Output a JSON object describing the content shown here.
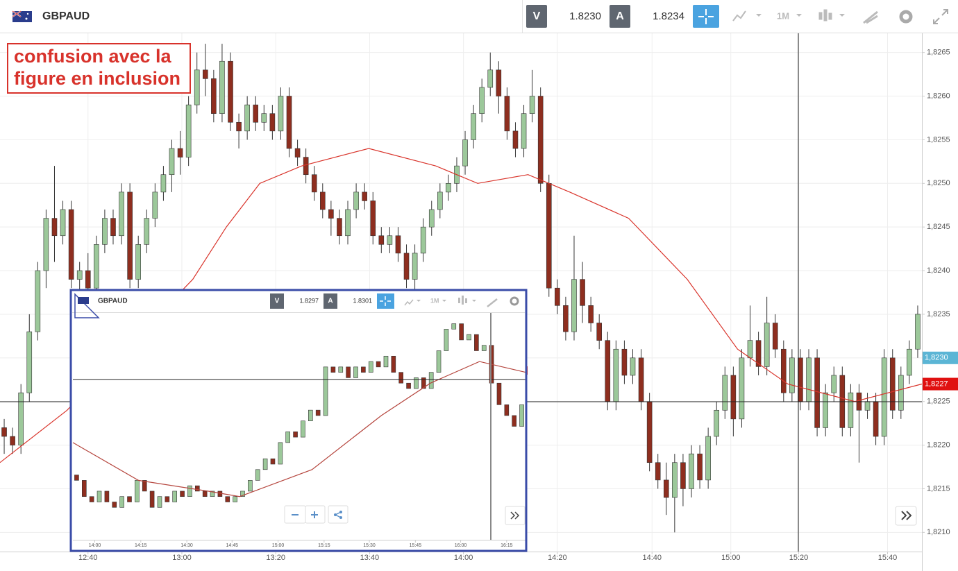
{
  "header": {
    "symbol": "GBPAUD",
    "bid_label": "V",
    "bid": "1.8230",
    "ask_label": "A",
    "ask": "1.8234",
    "timeframe": "1M"
  },
  "inset_header": {
    "symbol": "GBPAUD",
    "bid_label": "V",
    "bid": "1.8297",
    "ask_label": "A",
    "ask": "1.8301",
    "timeframe": "1M"
  },
  "annotation": [
    "confusion avec la",
    "figure en inclusion"
  ],
  "chart_data": [
    {
      "type": "candlestick",
      "up_color": "#9cc89a",
      "down_color": "#8e2e1f",
      "grid": true,
      "xlim": [
        0,
        110
      ],
      "ylim": [
        1.82078,
        1.82672
      ],
      "xticks": [
        {
          "value": 10.5,
          "label": "12:40"
        },
        {
          "value": 21.7,
          "label": "13:00"
        },
        {
          "value": 32.9,
          "label": "13:20"
        },
        {
          "value": 44.1,
          "label": "13:40"
        },
        {
          "value": 55.3,
          "label": "14:00"
        },
        {
          "value": 66.5,
          "label": "14:20"
        },
        {
          "value": 77.8,
          "label": "14:40"
        },
        {
          "value": 87.2,
          "label": "15:00"
        },
        {
          "value": 95.3,
          "label": "15:20"
        },
        {
          "value": 105.9,
          "label": "15:40"
        }
      ],
      "yticks": [
        {
          "value": 1.821,
          "label": "1,8210"
        },
        {
          "value": 1.8215,
          "label": "1,8215"
        },
        {
          "value": 1.822,
          "label": "1,8220"
        },
        {
          "value": 1.8225,
          "label": "1,8225"
        },
        {
          "value": 1.823,
          "label": "1,8230"
        },
        {
          "value": 1.8235,
          "label": "1,8235"
        },
        {
          "value": 1.824,
          "label": "1,8240"
        },
        {
          "value": 1.8245,
          "label": "1,8245"
        },
        {
          "value": 1.825,
          "label": "1,8250"
        },
        {
          "value": 1.8255,
          "label": "1,8255"
        },
        {
          "value": 1.826,
          "label": "1,8260"
        },
        {
          "value": 1.8265,
          "label": "1,8265"
        }
      ],
      "price_markers": [
        {
          "value": 1.823,
          "label": "1,8230",
          "color": "#5bb5d5"
        },
        {
          "value": 1.8227,
          "label": "1,8227",
          "color": "#e01010"
        }
      ],
      "open": [
        1.8222,
        1.8221,
        1.822,
        1.8226,
        1.8233,
        1.824,
        1.8246,
        1.8244,
        1.8247,
        1.8239,
        1.824,
        1.8238,
        1.8243,
        1.8246,
        1.8244,
        1.8249,
        1.8239,
        1.8243,
        1.8246,
        1.8249,
        1.8251,
        1.8254,
        1.8253,
        1.8259,
        1.8263,
        1.8262,
        1.8258,
        1.8264,
        1.8257,
        1.8256,
        1.8259,
        1.8257,
        1.8258,
        1.8256,
        1.826,
        1.8254,
        1.8253,
        1.8251,
        1.8249,
        1.8247,
        1.8246,
        1.8244,
        1.8247,
        1.8249,
        1.8248,
        1.8244,
        1.8243,
        1.8244,
        1.8242,
        1.8239,
        1.8242,
        1.8245,
        1.8247,
        1.8249,
        1.825,
        1.8252,
        1.8255,
        1.8258,
        1.8261,
        1.8263,
        1.826,
        1.8256,
        1.8254,
        1.8258,
        1.826,
        1.825,
        1.8238,
        1.8236,
        1.8233,
        1.8239,
        1.8236,
        1.8234,
        1.8232,
        1.8225,
        1.8231,
        1.8228,
        1.823,
        1.8225,
        1.8218,
        1.8216,
        1.8214,
        1.8218,
        1.8215,
        1.8219,
        1.8216,
        1.8221,
        1.8224,
        1.8228,
        1.8223,
        1.823,
        1.8232,
        1.8229,
        1.8234,
        1.8231,
        1.8226,
        1.823,
        1.8225,
        1.823,
        1.8222,
        1.8226,
        1.8228,
        1.8222,
        1.8226,
        1.8224,
        1.8225,
        1.8221,
        1.823,
        1.8224,
        1.8228,
        1.8231
      ],
      "high": [
        1.8223,
        1.8222,
        1.8227,
        1.8235,
        1.8241,
        1.8247,
        1.8252,
        1.8248,
        1.8248,
        1.8241,
        1.8242,
        1.8244,
        1.8247,
        1.8247,
        1.825,
        1.825,
        1.8244,
        1.8247,
        1.825,
        1.8252,
        1.8255,
        1.8256,
        1.826,
        1.8265,
        1.8266,
        1.8263,
        1.8266,
        1.8265,
        1.8258,
        1.826,
        1.826,
        1.8259,
        1.8259,
        1.8261,
        1.8261,
        1.8255,
        1.8254,
        1.8252,
        1.825,
        1.8248,
        1.8247,
        1.8248,
        1.825,
        1.825,
        1.8249,
        1.8245,
        1.8245,
        1.8245,
        1.8243,
        1.8243,
        1.8246,
        1.8248,
        1.825,
        1.8251,
        1.8253,
        1.8256,
        1.8259,
        1.8262,
        1.8265,
        1.8264,
        1.8261,
        1.8257,
        1.8259,
        1.8263,
        1.8261,
        1.8251,
        1.8239,
        1.8237,
        1.8244,
        1.8241,
        1.8237,
        1.8235,
        1.8233,
        1.8232,
        1.8232,
        1.8231,
        1.8231,
        1.8226,
        1.8219,
        1.8218,
        1.8219,
        1.8219,
        1.822,
        1.822,
        1.8222,
        1.8225,
        1.8229,
        1.8229,
        1.8231,
        1.8236,
        1.8233,
        1.8237,
        1.8235,
        1.8232,
        1.8231,
        1.8231,
        1.8231,
        1.8231,
        1.8227,
        1.8229,
        1.8229,
        1.8227,
        1.8227,
        1.8226,
        1.8226,
        1.8231,
        1.8231,
        1.8229,
        1.8232,
        1.8236
      ],
      "low": [
        1.8219,
        1.8219,
        1.8219,
        1.8225,
        1.8232,
        1.8238,
        1.8241,
        1.8243,
        1.8238,
        1.8237,
        1.8237,
        1.8237,
        1.8242,
        1.8243,
        1.8243,
        1.8238,
        1.8238,
        1.8242,
        1.8245,
        1.8248,
        1.8249,
        1.8251,
        1.8252,
        1.8258,
        1.826,
        1.8257,
        1.8257,
        1.8256,
        1.8254,
        1.8255,
        1.8256,
        1.8256,
        1.8255,
        1.8255,
        1.8253,
        1.8252,
        1.825,
        1.8248,
        1.8246,
        1.8244,
        1.8243,
        1.8243,
        1.8246,
        1.8247,
        1.8243,
        1.8242,
        1.8242,
        1.8241,
        1.8238,
        1.8237,
        1.8241,
        1.8244,
        1.8246,
        1.8248,
        1.8249,
        1.8251,
        1.8254,
        1.8257,
        1.826,
        1.8258,
        1.8255,
        1.8253,
        1.8253,
        1.8257,
        1.8249,
        1.8237,
        1.8235,
        1.8232,
        1.8232,
        1.8234,
        1.8233,
        1.8231,
        1.8224,
        1.8224,
        1.8227,
        1.8227,
        1.8224,
        1.8217,
        1.8215,
        1.8212,
        1.821,
        1.8213,
        1.8214,
        1.8215,
        1.8215,
        1.822,
        1.8223,
        1.8221,
        1.8222,
        1.8229,
        1.8228,
        1.8228,
        1.823,
        1.8225,
        1.8225,
        1.8224,
        1.8224,
        1.8221,
        1.8221,
        1.8225,
        1.8221,
        1.8221,
        1.8218,
        1.8223,
        1.822,
        1.822,
        1.8223,
        1.8223,
        1.8227,
        1.823
      ],
      "close": [
        1.8221,
        1.822,
        1.8226,
        1.8233,
        1.824,
        1.8246,
        1.8244,
        1.8247,
        1.8239,
        1.824,
        1.8238,
        1.8243,
        1.8246,
        1.8244,
        1.8249,
        1.8239,
        1.8243,
        1.8246,
        1.8249,
        1.8251,
        1.8254,
        1.8253,
        1.8259,
        1.8263,
        1.8262,
        1.8258,
        1.8264,
        1.8257,
        1.8256,
        1.8259,
        1.8257,
        1.8258,
        1.8256,
        1.826,
        1.8254,
        1.8253,
        1.8251,
        1.8249,
        1.8247,
        1.8246,
        1.8244,
        1.8247,
        1.8249,
        1.8248,
        1.8244,
        1.8243,
        1.8244,
        1.8242,
        1.8239,
        1.8242,
        1.8245,
        1.8247,
        1.8249,
        1.825,
        1.8252,
        1.8255,
        1.8258,
        1.8261,
        1.8263,
        1.826,
        1.8256,
        1.8254,
        1.8258,
        1.826,
        1.825,
        1.8238,
        1.8236,
        1.8233,
        1.8239,
        1.8236,
        1.8234,
        1.8232,
        1.8225,
        1.8231,
        1.8228,
        1.823,
        1.8225,
        1.8218,
        1.8216,
        1.8214,
        1.8218,
        1.8215,
        1.8219,
        1.8216,
        1.8221,
        1.8224,
        1.8228,
        1.8223,
        1.823,
        1.8232,
        1.8229,
        1.8234,
        1.8231,
        1.8226,
        1.823,
        1.8225,
        1.823,
        1.8222,
        1.8226,
        1.8228,
        1.8222,
        1.8226,
        1.8224,
        1.8225,
        1.8221,
        1.823,
        1.8224,
        1.8228,
        1.8231,
        1.8235
      ],
      "ma": {
        "color": "#d9342b",
        "x": [
          0,
          8,
          23,
          27,
          31,
          36,
          44,
          52,
          57,
          63,
          68,
          75,
          82,
          88,
          94,
          102,
          110
        ],
        "values": [
          1.8218,
          1.8224,
          1.8239,
          1.8245,
          1.825,
          1.8252,
          1.8254,
          1.8252,
          1.825,
          1.8251,
          1.8249,
          1.8246,
          1.8239,
          1.8231,
          1.8227,
          1.8225,
          1.8227
        ]
      }
    },
    {
      "type": "candlestick",
      "up_color": "#9cc89a",
      "down_color": "#8e2e1f",
      "xlim": [
        0,
        60
      ],
      "ylim": [
        1.8268,
        1.831
      ],
      "xticks": [
        {
          "value": 2.9,
          "label": "14:00"
        },
        {
          "value": 9.0,
          "label": "14:15"
        },
        {
          "value": 15.1,
          "label": "14:30"
        },
        {
          "value": 21.1,
          "label": "14:45"
        },
        {
          "value": 27.2,
          "label": "15:00"
        },
        {
          "value": 33.3,
          "label": "15:15"
        },
        {
          "value": 39.3,
          "label": "15:30"
        },
        {
          "value": 45.4,
          "label": "15:45"
        },
        {
          "value": 51.4,
          "label": "16:00"
        },
        {
          "value": 57.5,
          "label": "16:15"
        }
      ],
      "open": [
        1.828,
        1.8279,
        1.8276,
        1.8275,
        1.8277,
        1.8275,
        1.8274,
        1.8276,
        1.8275,
        1.8279,
        1.8277,
        1.8274,
        1.8276,
        1.8275,
        1.8277,
        1.8276,
        1.8278,
        1.8277,
        1.8276,
        1.8277,
        1.8276,
        1.8275,
        1.8276,
        1.8277,
        1.8279,
        1.8281,
        1.8283,
        1.8282,
        1.8286,
        1.8288,
        1.8287,
        1.829,
        1.8292,
        1.8291,
        1.83,
        1.8299,
        1.83,
        1.8298,
        1.83,
        1.8299,
        1.8301,
        1.83,
        1.8302,
        1.8299,
        1.8297,
        1.8296,
        1.8298,
        1.8296,
        1.8299,
        1.8303,
        1.8307,
        1.8308,
        1.8305,
        1.8306,
        1.8303,
        1.8304,
        1.8297,
        1.8293,
        1.8291,
        1.8289
      ],
      "close": [
        1.8279,
        1.8276,
        1.8275,
        1.8277,
        1.8275,
        1.8274,
        1.8276,
        1.8275,
        1.8279,
        1.8277,
        1.8274,
        1.8276,
        1.8275,
        1.8277,
        1.8276,
        1.8278,
        1.8277,
        1.8276,
        1.8277,
        1.8276,
        1.8275,
        1.8276,
        1.8277,
        1.8279,
        1.8281,
        1.8283,
        1.8282,
        1.8286,
        1.8288,
        1.8287,
        1.829,
        1.8292,
        1.8291,
        1.83,
        1.8299,
        1.83,
        1.8298,
        1.83,
        1.8299,
        1.8301,
        1.83,
        1.8302,
        1.8299,
        1.8297,
        1.8296,
        1.8298,
        1.8296,
        1.8299,
        1.8303,
        1.8307,
        1.8308,
        1.8305,
        1.8306,
        1.8303,
        1.8304,
        1.8297,
        1.8293,
        1.8291,
        1.8289,
        1.8293
      ],
      "ma": {
        "color": "#b5453d",
        "x": [
          0,
          8.7,
          17.9,
          22.1,
          31.7,
          40.9,
          47.4,
          53.9,
          60
        ],
        "values": [
          1.8286,
          1.8279,
          1.8277,
          1.8276,
          1.8281,
          1.8291,
          1.8297,
          1.8301,
          1.8299
        ]
      }
    }
  ]
}
